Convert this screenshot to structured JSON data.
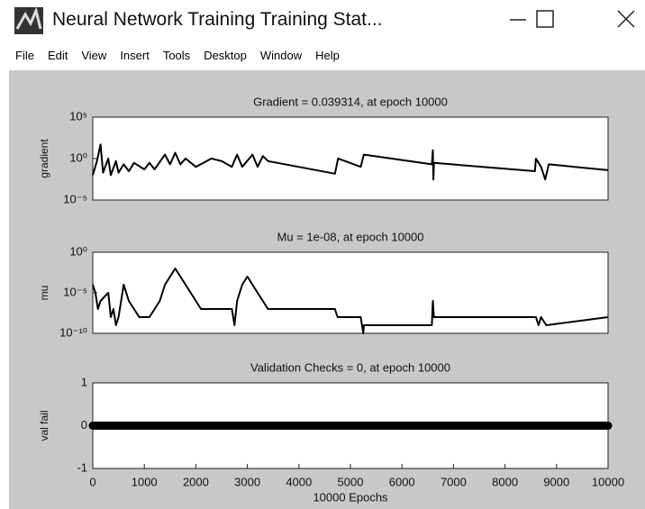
{
  "window": {
    "title": "Neural Network Training Training Stat...",
    "menu": [
      "File",
      "Edit",
      "View",
      "Insert",
      "Tools",
      "Desktop",
      "Window",
      "Help"
    ]
  },
  "chart_data": [
    {
      "type": "line",
      "title": "Gradient = 0.039314, at epoch 10000",
      "ylabel": "gradient",
      "color": "#000000",
      "log_y": true,
      "xlim": [
        0,
        10000
      ],
      "ylim": [
        1e-05,
        100000
      ],
      "yticks": [
        {
          "value": 100000,
          "label": "10⁵"
        },
        {
          "value": 1,
          "label": "10⁰"
        },
        {
          "value": 1e-05,
          "label": "10⁻⁵"
        }
      ],
      "x": [
        0,
        80,
        150,
        200,
        300,
        350,
        450,
        500,
        600,
        700,
        800,
        1000,
        1100,
        1200,
        1400,
        1500,
        1600,
        1700,
        1800,
        2000,
        2300,
        2500,
        2700,
        2800,
        2900,
        3100,
        3200,
        3300,
        3400,
        4700,
        4760,
        5200,
        5260,
        6580,
        6600,
        6610,
        6620,
        8580,
        8600,
        8700,
        8780,
        8850,
        10000
      ],
      "values": [
        0.01,
        0.5,
        50,
        0.02,
        1,
        0.01,
        0.5,
        0.02,
        0.2,
        0.03,
        0.3,
        0.05,
        0.3,
        0.05,
        3,
        0.2,
        5,
        0.2,
        1,
        0.1,
        1,
        0.5,
        0.1,
        3,
        0.1,
        3,
        0.1,
        2,
        0.5,
        0.015,
        1,
        0.1,
        3,
        0.2,
        10,
        0.003,
        0.3,
        0.03,
        1,
        0.1,
        0.003,
        0.2,
        0.039314
      ]
    },
    {
      "type": "line",
      "title": "Mu = 1e-08, at epoch 10000",
      "ylabel": "mu",
      "color": "#000000",
      "log_y": true,
      "xlim": [
        0,
        10000
      ],
      "ylim": [
        1e-10,
        1
      ],
      "yticks": [
        {
          "value": 1,
          "label": "10⁰"
        },
        {
          "value": 1e-05,
          "label": "10⁻⁵"
        },
        {
          "value": 1e-10,
          "label": "10⁻¹⁰"
        }
      ],
      "x": [
        0,
        50,
        100,
        150,
        300,
        350,
        400,
        450,
        500,
        600,
        700,
        800,
        900,
        1100,
        1300,
        1400,
        1500,
        1600,
        1700,
        1800,
        1900,
        2100,
        2700,
        2750,
        2800,
        2900,
        3000,
        3200,
        3400,
        4700,
        4750,
        5200,
        5250,
        5260,
        6580,
        6600,
        6620,
        8600,
        8650,
        8700,
        8800,
        10000
      ],
      "values": [
        0.0001,
        1e-05,
        1e-07,
        1e-06,
        1e-05,
        1e-08,
        1e-07,
        1e-09,
        1e-08,
        0.0001,
        1e-06,
        1e-07,
        1e-08,
        1e-08,
        1e-06,
        0.0001,
        0.001,
        0.01,
        0.001,
        0.0001,
        1e-05,
        1e-07,
        1e-07,
        1e-09,
        1e-06,
        0.0001,
        0.001,
        1e-05,
        1e-07,
        1e-07,
        1e-08,
        1e-08,
        1e-10,
        1e-09,
        1e-09,
        1e-06,
        1e-08,
        1e-08,
        1e-09,
        1e-08,
        1e-09,
        1e-08
      ]
    },
    {
      "type": "line",
      "title": "Validation Checks = 0, at epoch 10000",
      "ylabel": "val fail",
      "color": "#000000",
      "marker": "o",
      "xlabel": "10000 Epochs",
      "xlim": [
        0,
        10000
      ],
      "ylim": [
        -1,
        1
      ],
      "yticks": [
        -1,
        0,
        1
      ],
      "xticks": [
        0,
        1000,
        2000,
        3000,
        4000,
        5000,
        6000,
        7000,
        8000,
        9000,
        10000
      ],
      "x": [
        0,
        10000
      ],
      "values": [
        0,
        0
      ]
    }
  ]
}
